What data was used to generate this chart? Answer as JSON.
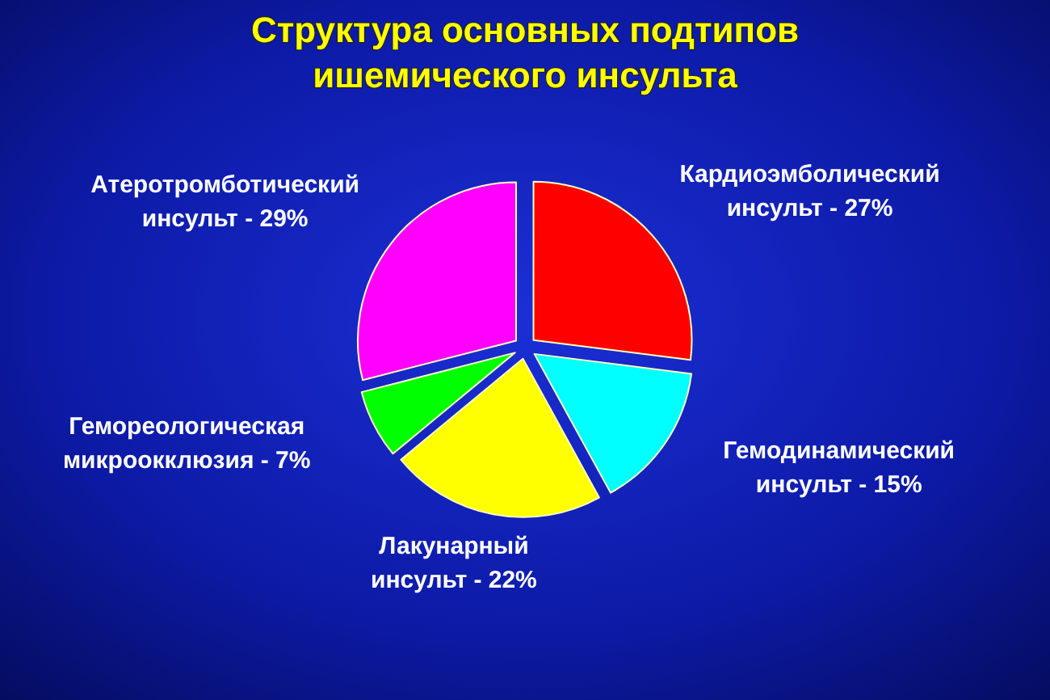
{
  "chart_data": {
    "type": "pie",
    "title": "Структура основных подтипов ишемического инсульта",
    "categories": [
      "Кардиоэмболический инсульт",
      "Гемодинамический инсульт",
      "Лакунарный инсульт",
      "Гемореологическая микроокклюзия",
      "Атеротромботический инсульт"
    ],
    "values": [
      27,
      15,
      22,
      7,
      29
    ],
    "value_labels": [
      "27%",
      "15%",
      "22%",
      "7%",
      "29%"
    ],
    "colors": [
      "#ff0000",
      "#00ffff",
      "#ffff00",
      "#00ff00",
      "#ff00ff"
    ]
  }
}
